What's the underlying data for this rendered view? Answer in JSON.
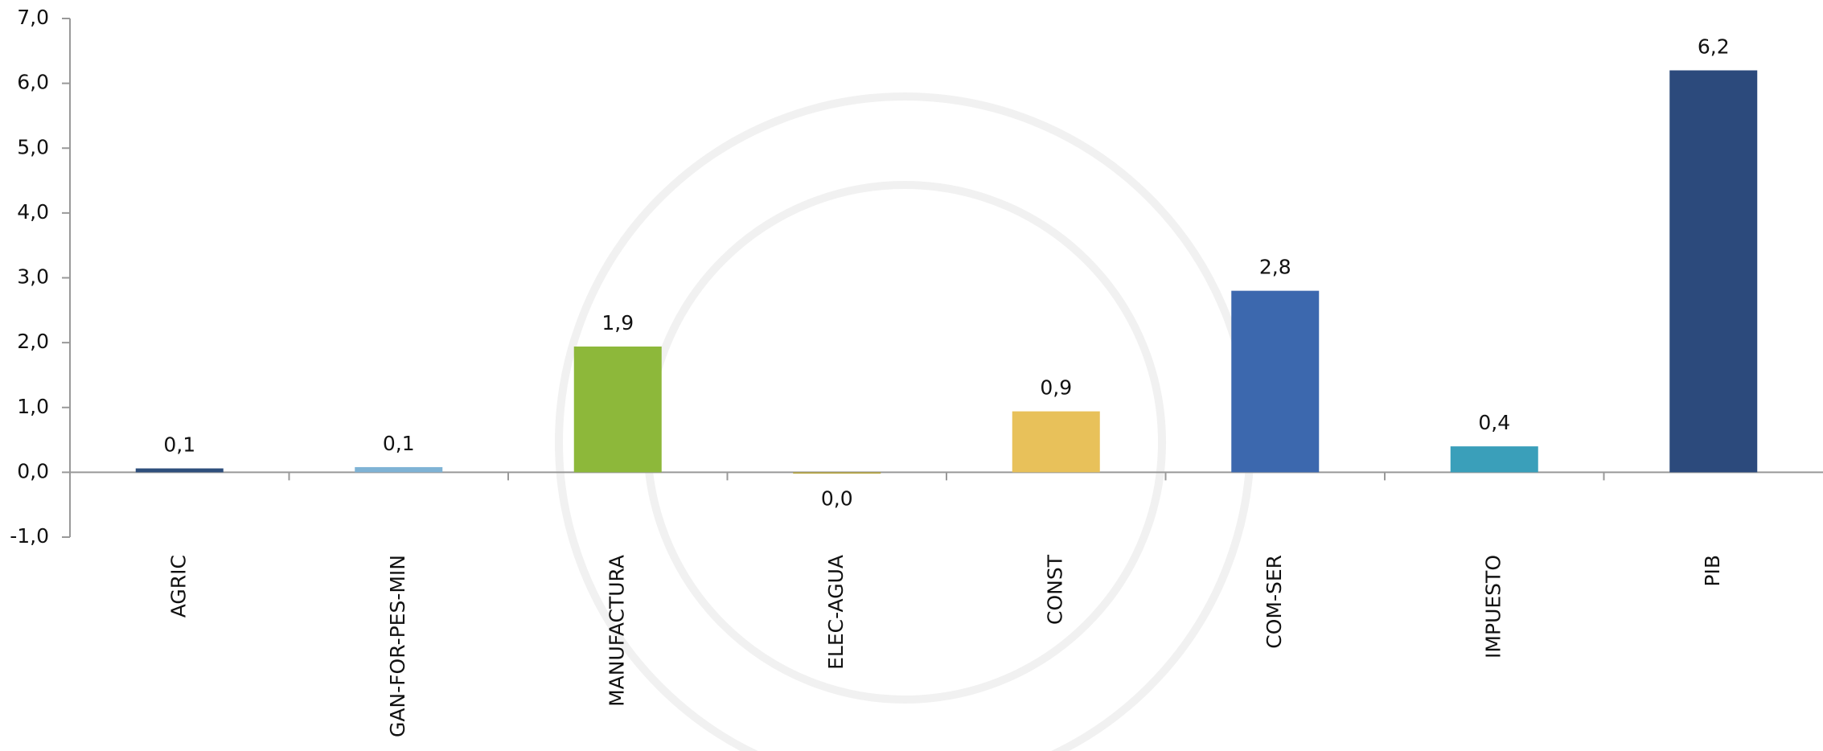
{
  "chart_data": {
    "type": "bar",
    "categories": [
      "AGRIC",
      "GAN-FOR-PES-MIN",
      "MANUFACTURA",
      "ELEC-AGUA",
      "CONST",
      "COM-SER",
      "IMPUESTO",
      "PIB"
    ],
    "values": [
      0.06,
      0.08,
      1.94,
      -0.02,
      0.94,
      2.8,
      0.4,
      6.2
    ],
    "value_labels": [
      "0,1",
      "0,1",
      "1,9",
      "0,0",
      "0,9",
      "2,8",
      "0,4",
      "6,2"
    ],
    "colors": [
      "#2e4f7c",
      "#7fb3d5",
      "#8db83a",
      "#b5a43a",
      "#e8c15a",
      "#3c68ae",
      "#3a9fba",
      "#2c4a7c"
    ],
    "ylim": [
      -1,
      7
    ],
    "yticks": [
      {
        "value": -1,
        "label": "-1,0"
      },
      {
        "value": 0,
        "label": "0,0"
      },
      {
        "value": 1,
        "label": "1,0"
      },
      {
        "value": 2,
        "label": "2,0"
      },
      {
        "value": 3,
        "label": "3,0"
      },
      {
        "value": 4,
        "label": "4,0"
      },
      {
        "value": 5,
        "label": "5,0"
      },
      {
        "value": 6,
        "label": "6,0"
      },
      {
        "value": 7,
        "label": "7,0"
      }
    ],
    "grid": false
  }
}
